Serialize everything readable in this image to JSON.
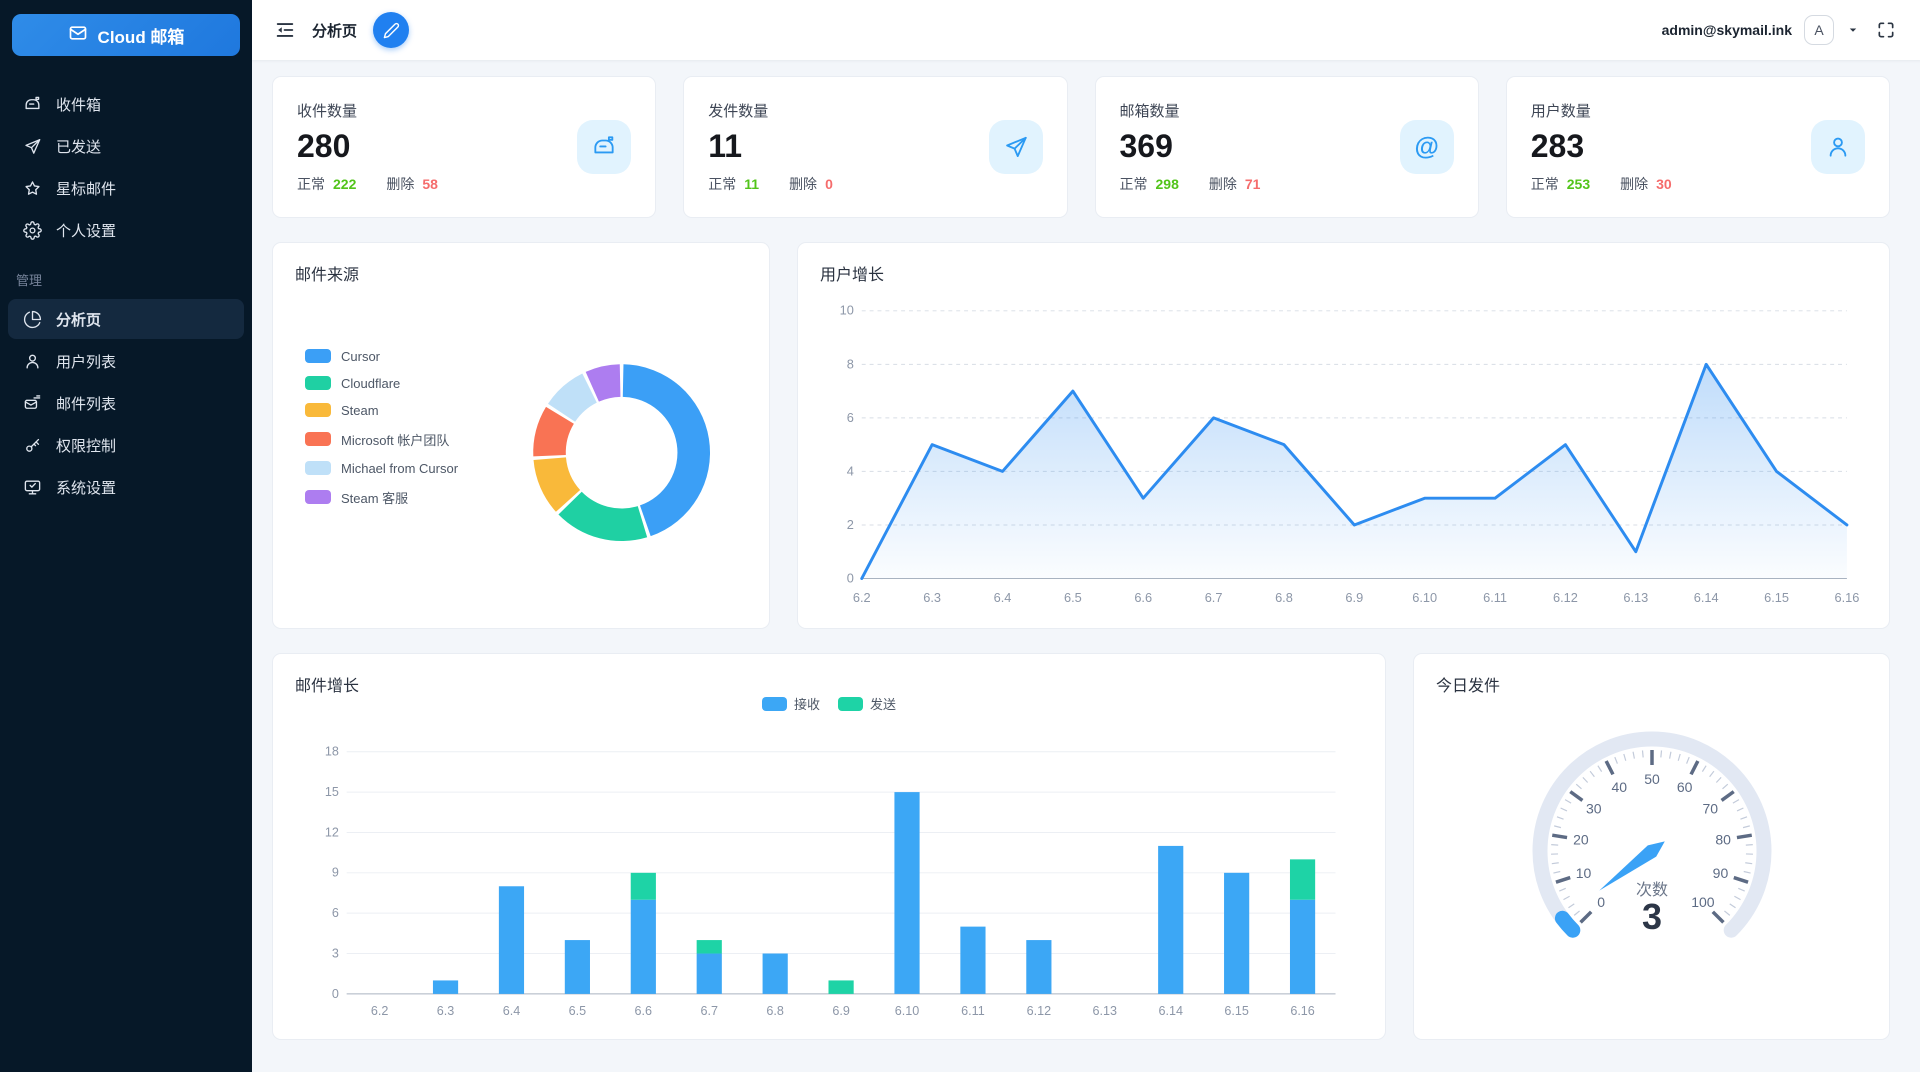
{
  "app": {
    "logo_label": "Cloud 邮箱"
  },
  "header": {
    "breadcrumb": "分析页",
    "user_email": "admin@skymail.ink",
    "avatar_letter": "A"
  },
  "sidebar": {
    "section_label": "管理",
    "items": [
      {
        "label": "收件箱",
        "icon": "mailbox-icon"
      },
      {
        "label": "已发送",
        "icon": "send-icon"
      },
      {
        "label": "星标邮件",
        "icon": "star-icon"
      },
      {
        "label": "个人设置",
        "icon": "gear-icon"
      }
    ],
    "admin_items": [
      {
        "label": "分析页",
        "icon": "pie-chart-icon",
        "active": true
      },
      {
        "label": "用户列表",
        "icon": "user-icon"
      },
      {
        "label": "邮件列表",
        "icon": "mail-list-icon"
      },
      {
        "label": "权限控制",
        "icon": "key-icon"
      },
      {
        "label": "系统设置",
        "icon": "monitor-icon"
      }
    ]
  },
  "stats": [
    {
      "title": "收件数量",
      "value": "280",
      "normal_label": "正常",
      "normal_value": "222",
      "deleted_label": "删除",
      "deleted_value": "58",
      "icon": "mailbox-icon"
    },
    {
      "title": "发件数量",
      "value": "11",
      "normal_label": "正常",
      "normal_value": "11",
      "deleted_label": "删除",
      "deleted_value": "0",
      "icon": "send-icon"
    },
    {
      "title": "邮箱数量",
      "value": "369",
      "normal_label": "正常",
      "normal_value": "298",
      "deleted_label": "删除",
      "deleted_value": "71",
      "icon": "at-icon"
    },
    {
      "title": "用户数量",
      "value": "283",
      "normal_label": "正常",
      "normal_value": "253",
      "deleted_label": "删除",
      "deleted_value": "30",
      "icon": "user-icon"
    }
  ],
  "colors": {
    "primary": "#2080f0",
    "normal_green": "#52c41a",
    "deleted_red": "#f56c6c",
    "sidebar_bg": "#061828",
    "stat_icon_bg": "#e1f3fe",
    "stat_icon_fg": "#2b9af3"
  },
  "chart_data": [
    {
      "type": "pie",
      "title": "邮件来源",
      "donut": true,
      "legend_position": "left",
      "labels": [
        "Cursor",
        "Cloudflare",
        "Steam",
        "Microsoft 帐户团队",
        "Michael from Cursor",
        "Steam 客服"
      ],
      "values": [
        45,
        18,
        11,
        10,
        9,
        7
      ],
      "colors": [
        "#3b9ff6",
        "#1fd0a3",
        "#f9b93a",
        "#f97354",
        "#bfe0f8",
        "#ad7df0"
      ]
    },
    {
      "type": "area",
      "title": "用户增长",
      "x": [
        "6.2",
        "6.3",
        "6.4",
        "6.5",
        "6.6",
        "6.7",
        "6.8",
        "6.9",
        "6.10",
        "6.11",
        "6.12",
        "6.13",
        "6.14",
        "6.15",
        "6.16"
      ],
      "values": [
        0,
        5,
        4,
        7,
        3,
        6,
        5,
        2,
        3,
        3,
        5,
        1,
        8,
        4,
        2
      ],
      "ylim": [
        0,
        10
      ],
      "yticks": [
        0,
        2,
        4,
        6,
        8,
        10
      ],
      "grid": "dashed",
      "line_color": "#2d8cf0",
      "fill_from": "rgba(45,140,240,0.30)",
      "fill_to": "rgba(45,140,240,0.02)"
    },
    {
      "type": "bar",
      "title": "邮件增长",
      "stacked": true,
      "legend_position": "top",
      "x": [
        "6.2",
        "6.3",
        "6.4",
        "6.5",
        "6.6",
        "6.7",
        "6.8",
        "6.9",
        "6.10",
        "6.11",
        "6.12",
        "6.13",
        "6.14",
        "6.15",
        "6.16"
      ],
      "series": [
        {
          "name": "接收",
          "color": "#3ca7f5",
          "values": [
            0,
            1,
            8,
            4,
            7,
            3,
            3,
            0,
            15,
            5,
            4,
            0,
            11,
            9,
            7
          ]
        },
        {
          "name": "发送",
          "color": "#1ed3a6",
          "values": [
            0,
            0,
            0,
            0,
            2,
            1,
            0,
            1,
            0,
            0,
            0,
            0,
            0,
            0,
            3
          ]
        }
      ],
      "ylim": [
        0,
        18
      ],
      "yticks": [
        0,
        3,
        6,
        9,
        12,
        15,
        18
      ]
    },
    {
      "type": "gauge",
      "title": "今日发件",
      "label": "次数",
      "value": 3,
      "min": 0,
      "max": 100,
      "start_angle": 225,
      "end_angle": -45,
      "tick_labels": [
        0,
        10,
        20,
        30,
        40,
        50,
        60,
        70,
        80,
        90,
        100
      ],
      "track_color": "#e2e8f3",
      "progress_color": "#3aa2f6",
      "needle_color": "#3aa2f6"
    }
  ]
}
